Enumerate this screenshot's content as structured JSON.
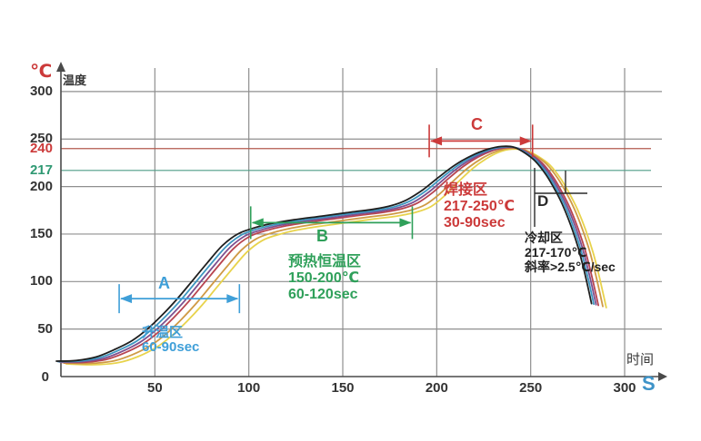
{
  "page": {
    "background": "#ffffff"
  },
  "chart_data": {
    "type": "line",
    "title": "",
    "xlabel": "时间",
    "x_unit": "S",
    "ylabel": "温度",
    "y_unit": "℃",
    "origin_label": "0",
    "xlim": [
      0,
      320
    ],
    "ylim": [
      0,
      330
    ],
    "grid": true,
    "x_ticks": [
      50,
      100,
      150,
      200,
      250,
      300
    ],
    "y_ticks": [
      {
        "value": 300,
        "label": "300",
        "color": "#333333",
        "ref": false
      },
      {
        "value": 250,
        "label": "250",
        "color": "#333333",
        "ref": false
      },
      {
        "value": 240,
        "label": "240",
        "color": "#cc3a3a",
        "ref": true
      },
      {
        "value": 217,
        "label": "217",
        "color": "#2f9973",
        "ref": true
      },
      {
        "value": 200,
        "label": "200",
        "color": "#333333",
        "ref": false
      },
      {
        "value": 150,
        "label": "150",
        "color": "#333333",
        "ref": false
      },
      {
        "value": 100,
        "label": "100",
        "color": "#333333",
        "ref": false
      },
      {
        "value": 50,
        "label": "50",
        "color": "#333333",
        "ref": false
      }
    ],
    "reference_lines": [
      {
        "value": 240,
        "color": "#b25a4e"
      },
      {
        "value": 217,
        "color": "#4e9c86"
      }
    ],
    "profile_points": [
      [
        0,
        15
      ],
      [
        12,
        15
      ],
      [
        24,
        18
      ],
      [
        34,
        25
      ],
      [
        44,
        35
      ],
      [
        52,
        47
      ],
      [
        60,
        62
      ],
      [
        68,
        79
      ],
      [
        76,
        98
      ],
      [
        84,
        117
      ],
      [
        92,
        135
      ],
      [
        100,
        147
      ],
      [
        108,
        153
      ],
      [
        118,
        158
      ],
      [
        130,
        162
      ],
      [
        145,
        166
      ],
      [
        160,
        170
      ],
      [
        172,
        173
      ],
      [
        182,
        177
      ],
      [
        190,
        183
      ],
      [
        198,
        194
      ],
      [
        206,
        208
      ],
      [
        214,
        221
      ],
      [
        222,
        231
      ],
      [
        230,
        238
      ],
      [
        237,
        241
      ],
      [
        244,
        240
      ],
      [
        250,
        234
      ],
      [
        256,
        225
      ],
      [
        262,
        210
      ],
      [
        267,
        193
      ],
      [
        271,
        177
      ],
      [
        275,
        157
      ],
      [
        279,
        133
      ],
      [
        282,
        110
      ],
      [
        284,
        93
      ],
      [
        286,
        75
      ]
    ],
    "series": [
      {
        "name": "black",
        "color": "#1f1f1f",
        "t_shift": -6,
        "temp_offset": 3
      },
      {
        "name": "blue",
        "color": "#3d96c0",
        "t_shift": -4,
        "temp_offset": 2
      },
      {
        "name": "purple",
        "color": "#7d4f8f",
        "t_shift": -2,
        "temp_offset": 1
      },
      {
        "name": "red",
        "color": "#b84450",
        "t_shift": 0,
        "temp_offset": 0
      },
      {
        "name": "orange",
        "color": "#cf9a45",
        "t_shift": 4,
        "temp_offset": -2
      },
      {
        "name": "yellow",
        "color": "#e8d34c",
        "t_shift": 7,
        "temp_offset": -4
      }
    ],
    "zones": [
      {
        "id": "A",
        "label": "A",
        "name": "升温区",
        "temp_range": "",
        "time": "60-90sec",
        "slope": "",
        "color": "#3f9fd8",
        "t_start": 31,
        "t_end": 95,
        "arrow_temp": 82
      },
      {
        "id": "B",
        "label": "B",
        "name": "预热恒温区",
        "temp_range": "150-200℃",
        "time": "60-120sec",
        "slope": "",
        "color": "#2fa05a",
        "t_start": 101,
        "t_end": 187,
        "arrow_temp": 162
      },
      {
        "id": "C",
        "label": "C",
        "name": "焊接区",
        "temp_range": "217-250℃",
        "time": "30-90sec",
        "slope": "",
        "color": "#cc3a3a",
        "t_start": 196,
        "t_end": 251,
        "arrow_temp": 248
      },
      {
        "id": "D",
        "label": "D",
        "name": "冷却区",
        "temp_range": "217-170℃",
        "time": "",
        "slope": "斜率>2.5℃/sec",
        "color": "#2a2a2a",
        "t_start": 252,
        "t_end": 269,
        "arrow_temp": 193
      }
    ]
  }
}
